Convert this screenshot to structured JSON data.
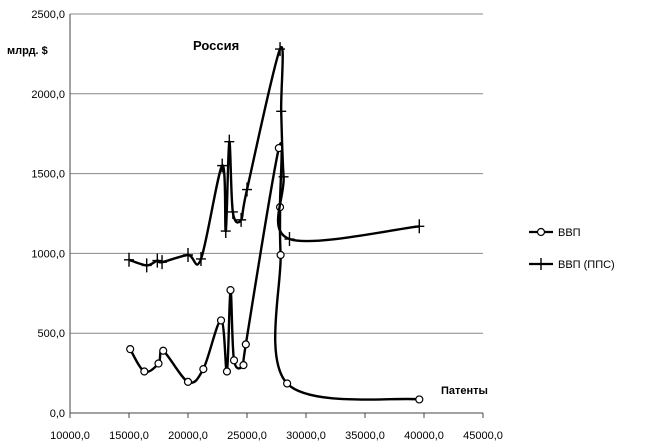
{
  "chart_data": {
    "type": "line",
    "title": "Россия",
    "ylabel": "млрд. $",
    "xlabel": "Патенты",
    "xlim": [
      10000,
      45000
    ],
    "ylim": [
      0,
      2500
    ],
    "xticks": [
      10000,
      15000,
      20000,
      25000,
      30000,
      35000,
      40000,
      45000
    ],
    "yticks": [
      0,
      500,
      1000,
      1500,
      2000,
      2500
    ],
    "xtick_labels": [
      "10000,0",
      "15000,0",
      "20000,0",
      "25000,0",
      "30000,0",
      "35000,0",
      "40000,0",
      "45000,0"
    ],
    "ytick_labels": [
      "0,0",
      "500,0",
      "1000,0",
      "1500,0",
      "2000,0",
      "2500,0"
    ],
    "grid": "horizontal",
    "legend_position": "right",
    "series": [
      {
        "name": "ВВП",
        "marker": "circle",
        "points": [
          [
            15100,
            400
          ],
          [
            16300,
            260
          ],
          [
            17500,
            310
          ],
          [
            17900,
            390
          ],
          [
            20000,
            195
          ],
          [
            21300,
            275
          ],
          [
            22800,
            580
          ],
          [
            23300,
            260
          ],
          [
            23600,
            770
          ],
          [
            23900,
            330
          ],
          [
            24700,
            300
          ],
          [
            24900,
            430
          ],
          [
            27700,
            1660
          ],
          [
            27800,
            1290
          ],
          [
            27850,
            990
          ],
          [
            28400,
            185
          ],
          [
            39600,
            85
          ]
        ]
      },
      {
        "name": "ВВП (ППС)",
        "marker": "plus",
        "points": [
          [
            15000,
            960
          ],
          [
            16500,
            925
          ],
          [
            17400,
            955
          ],
          [
            17800,
            945
          ],
          [
            20000,
            990
          ],
          [
            21100,
            965
          ],
          [
            22900,
            1550
          ],
          [
            23200,
            1140
          ],
          [
            23500,
            1700
          ],
          [
            23800,
            1260
          ],
          [
            24500,
            1210
          ],
          [
            25000,
            1400
          ],
          [
            27800,
            2280
          ],
          [
            27900,
            1890
          ],
          [
            28100,
            1480
          ],
          [
            28600,
            1090
          ],
          [
            39600,
            1170
          ]
        ]
      }
    ]
  }
}
